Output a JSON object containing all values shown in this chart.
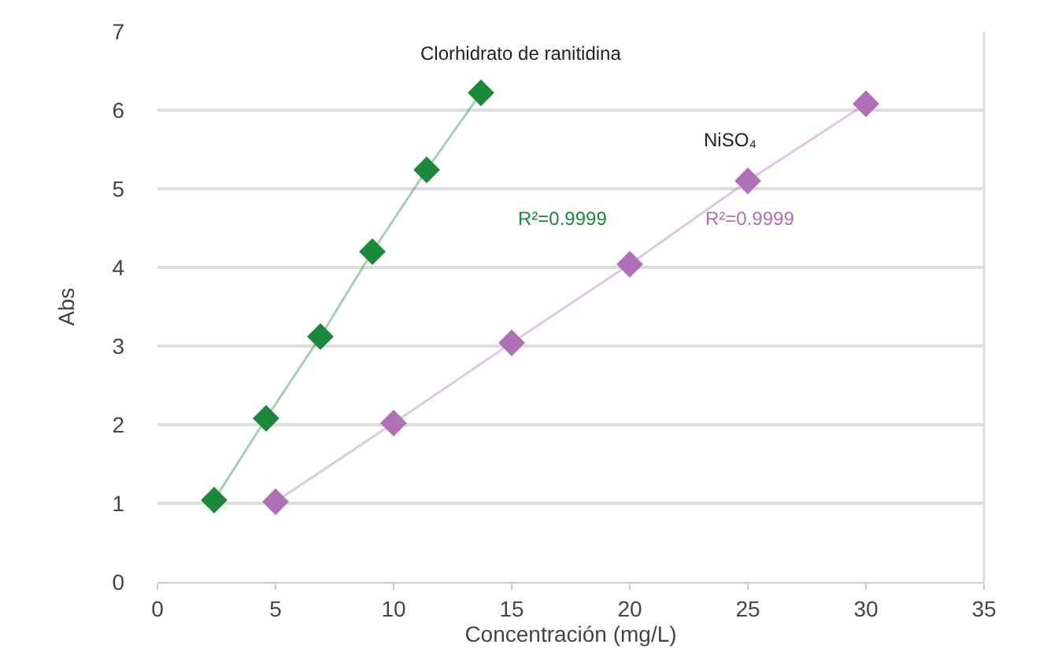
{
  "chart_data": {
    "type": "line",
    "xlabel": "Concentración (mg/L)",
    "ylabel": "Abs",
    "series": [
      {
        "name": "Clorhidrato de ranitidina",
        "color": "#1a8a3a",
        "x": [
          2.4,
          4.6,
          6.9,
          9.1,
          11.4,
          13.7
        ],
        "values": [
          1.04,
          2.08,
          3.12,
          4.2,
          5.24,
          6.22
        ]
      },
      {
        "name": "NiSO₄",
        "color": "#b070b8",
        "x": [
          5,
          10,
          15,
          20,
          25,
          30
        ],
        "values": [
          1.02,
          2.02,
          3.04,
          4.04,
          5.1,
          6.08
        ]
      }
    ],
    "annotations": [
      "R²=0.9999",
      "R²=0.9999"
    ],
    "xlim": [
      0,
      35
    ],
    "xticks": [
      0,
      5,
      10,
      15,
      20,
      25,
      30,
      35
    ],
    "ylim": [
      0,
      7
    ],
    "yticks": [
      0,
      1,
      2,
      3,
      4,
      5,
      6,
      7
    ],
    "grid": "y",
    "legend": false,
    "marker": "diamond",
    "line_style": "solid"
  }
}
